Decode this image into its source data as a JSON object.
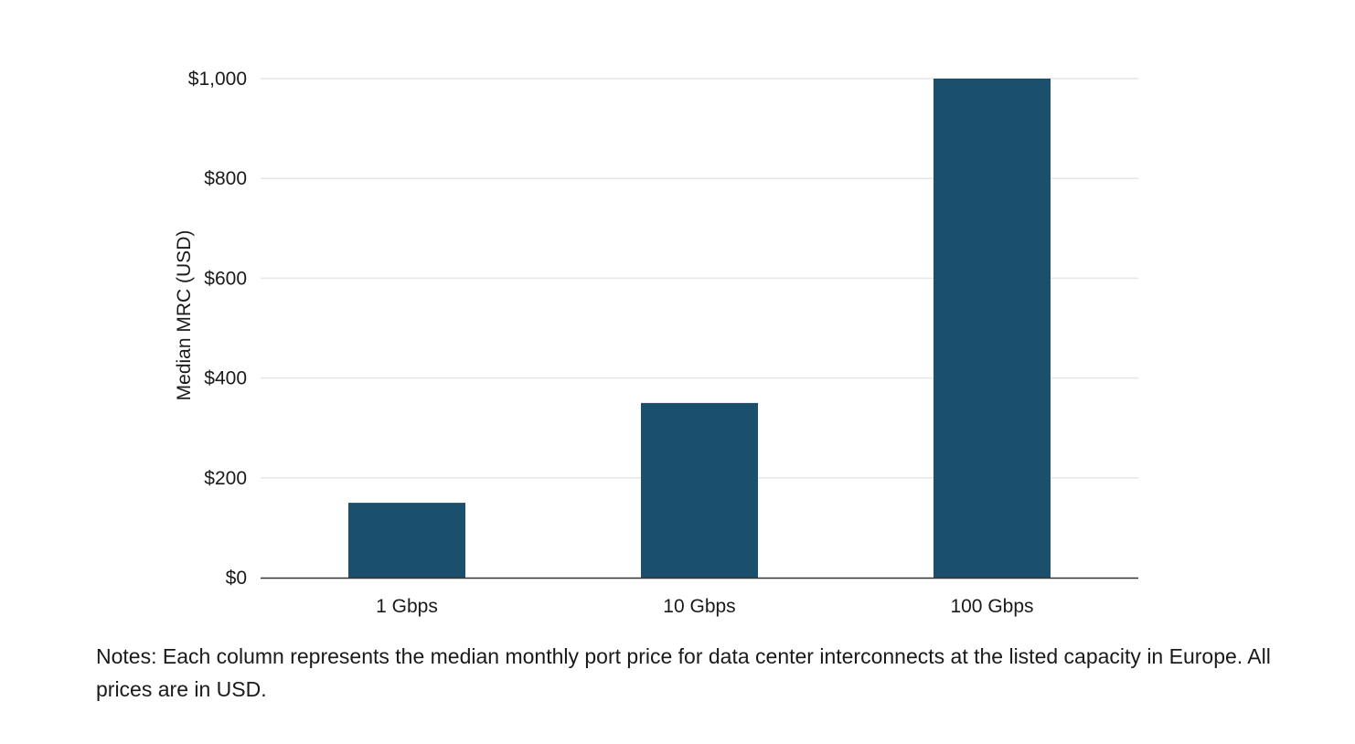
{
  "chart_data": {
    "type": "bar",
    "title": "",
    "xlabel": "",
    "ylabel": "Median MRC (USD)",
    "categories": [
      "1 Gbps",
      "10 Gbps",
      "100 Gbps"
    ],
    "values": [
      150,
      350,
      1000
    ],
    "ylim": [
      0,
      1000
    ],
    "yticks": [
      0,
      200,
      400,
      600,
      800,
      1000
    ],
    "ytick_labels": [
      "$0",
      "$200",
      "$400",
      "$600",
      "$800",
      "$1,000"
    ],
    "grid": true,
    "legend": "none",
    "bar_color": "#1a4f6e",
    "grid_color": "#e6e6e6",
    "axis_color": "#333333"
  },
  "notes": "Notes: Each column represents the median monthly port price for data center interconnects at the listed capacity in Europe. All prices are in USD."
}
